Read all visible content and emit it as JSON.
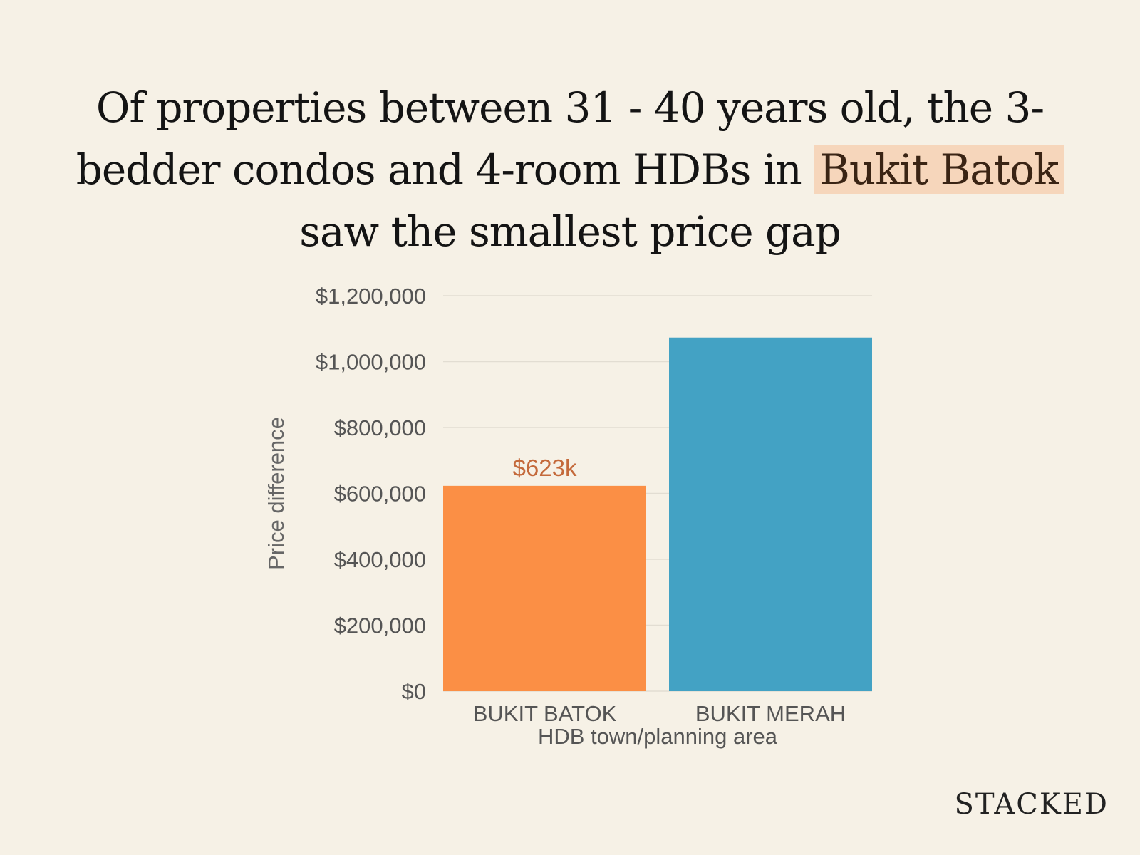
{
  "title": {
    "before": "Of properties between 31 - 40 years old, the 3-bedder condos and 4-room HDBs in ",
    "highlight": "Bukit Batok",
    "after": " saw the smallest price gap"
  },
  "brand": "STACKED",
  "colors": {
    "background": "#f6f1e6",
    "highlight": "#f6d6bb",
    "bar_bukit_batok": "#fb8f45",
    "bar_bukit_merah": "#43a2c4",
    "data_label": "#c4693a"
  },
  "chart_data": {
    "type": "bar",
    "categories": [
      "BUKIT BATOK",
      "BUKIT MERAH"
    ],
    "values": [
      623000,
      1073000
    ],
    "data_labels": [
      "$623k",
      ""
    ],
    "xlabel": "HDB town/planning area",
    "ylabel": "Price difference",
    "ylim": [
      0,
      1200000
    ],
    "yticks": [
      0,
      200000,
      400000,
      600000,
      800000,
      1000000,
      1200000
    ],
    "ytick_labels": [
      "$0",
      "$200,000",
      "$400,000",
      "$600,000",
      "$800,000",
      "$1,000,000",
      "$1,200,000"
    ],
    "grid": true,
    "legend": "none"
  }
}
